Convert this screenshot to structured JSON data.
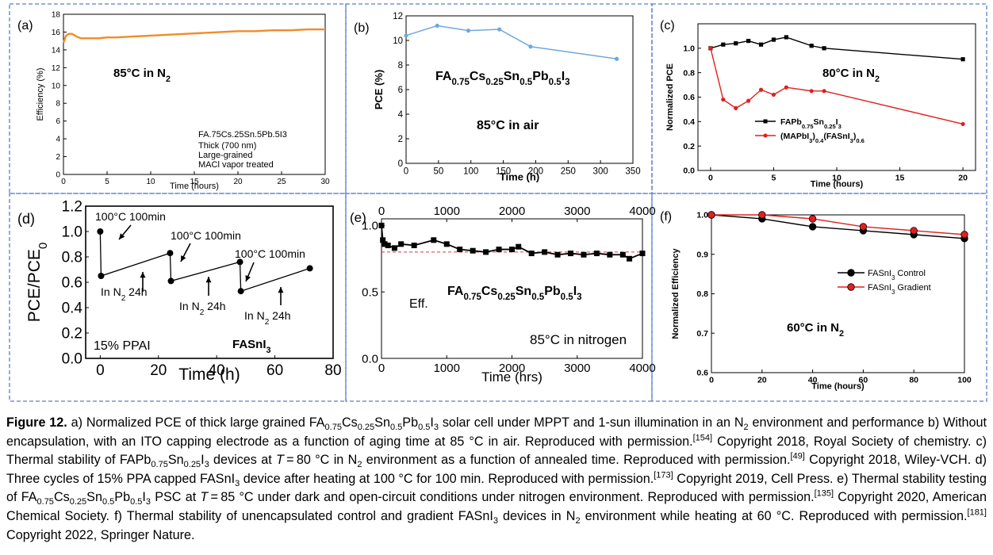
{
  "figure": {
    "panels": [
      {
        "id": "a",
        "panel_label": "(a)",
        "chart_data": {
          "type": "line",
          "xlabel": "Time (hours)",
          "ylabel": "Efficiency (%)",
          "xlim": [
            0,
            30
          ],
          "ylim": [
            0,
            18
          ],
          "xticks": [
            0,
            5,
            10,
            15,
            20,
            25,
            30
          ],
          "yticks": [
            0,
            2,
            4,
            6,
            8,
            10,
            12,
            14,
            16,
            18
          ],
          "series": [
            {
              "color": "#f08c28",
              "x": [
                0,
                0.3,
                0.6,
                1.0,
                1.5,
                2.0,
                3.0,
                4.0,
                5.0,
                6.0,
                8.0,
                10.0,
                12.0,
                14.0,
                16.0,
                18.0,
                20.0,
                22.0,
                24.0,
                26.0,
                28.0,
                30.0
              ],
              "y": [
                14.8,
                15.6,
                15.8,
                15.8,
                15.5,
                15.3,
                15.3,
                15.3,
                15.4,
                15.4,
                15.5,
                15.6,
                15.7,
                15.8,
                15.9,
                16.0,
                16.1,
                16.1,
                16.2,
                16.2,
                16.3,
                16.3
              ]
            }
          ],
          "annotations": {
            "condition": "85°C in N",
            "condition_sub": "2",
            "composition": "FA.75Cs.25Sn.5Pb.5I3",
            "notes": [
              "Thick (700 nm)",
              "Large-grained",
              "MACl vapor treated"
            ]
          }
        }
      },
      {
        "id": "b",
        "panel_label": "(b)",
        "chart_data": {
          "type": "line",
          "xlabel": "Time (h)",
          "ylabel": "PCE (%)",
          "xlim": [
            0,
            350
          ],
          "ylim": [
            0,
            12
          ],
          "xticks": [
            0,
            50,
            100,
            150,
            200,
            250,
            300,
            350
          ],
          "yticks": [
            0,
            2,
            4,
            6,
            8,
            10,
            12
          ],
          "series": [
            {
              "color": "#6fa8dc",
              "x": [
                0,
                48,
                96,
                144,
                192,
                325
              ],
              "y": [
                10.4,
                11.2,
                10.8,
                10.9,
                9.5,
                8.5
              ]
            }
          ],
          "annotations": {
            "composition": "FA0.75Cs0.25Sn0.5Pb0.5I3",
            "condition": "85°C in air"
          }
        }
      },
      {
        "id": "c",
        "panel_label": "(c)",
        "chart_data": {
          "type": "line",
          "xlabel": "Time (hours)",
          "ylabel": "Normalized PCE",
          "xlim": [
            -1,
            21
          ],
          "ylim": [
            0,
            1.2
          ],
          "xticks": [
            0,
            5,
            10,
            15,
            20
          ],
          "yticks": [
            0.0,
            0.2,
            0.4,
            0.6,
            0.8,
            1.0
          ],
          "legend": "middle-left",
          "series": [
            {
              "name": "FAPb0.75Sn0.25I3",
              "color": "#000000",
              "x": [
                0,
                1,
                2,
                3,
                4,
                5,
                6,
                8,
                9,
                20
              ],
              "y": [
                1.0,
                1.03,
                1.04,
                1.06,
                1.03,
                1.07,
                1.09,
                1.02,
                1.0,
                0.91
              ]
            },
            {
              "name": "(MAPbI3)0.4(FASnI3)0.6",
              "color": "#e02020",
              "x": [
                0,
                1,
                2,
                3,
                4,
                5,
                6,
                8,
                9,
                20
              ],
              "y": [
                1.0,
                0.58,
                0.51,
                0.57,
                0.66,
                0.62,
                0.68,
                0.65,
                0.65,
                0.38
              ]
            }
          ],
          "annotations": {
            "condition": "80°C in N",
            "condition_sub": "2"
          }
        }
      },
      {
        "id": "d",
        "panel_label": "(d)",
        "chart_data": {
          "type": "line",
          "xlabel": "Time (h)",
          "ylabel": "PCE/PCE",
          "ylabel_sub": "0",
          "xlim": [
            -5,
            80
          ],
          "ylim": [
            0,
            1.2
          ],
          "xticks": [
            0,
            20,
            40,
            60,
            80
          ],
          "yticks": [
            0.0,
            0.2,
            0.4,
            0.6,
            0.8,
            1.0,
            1.2
          ],
          "series": [
            {
              "color": "#000000",
              "segments": [
                {
                  "x": [
                    0,
                    0.3,
                    24
                  ],
                  "y": [
                    1.0,
                    0.65,
                    0.83
                  ]
                },
                {
                  "x": [
                    24,
                    24.3,
                    48
                  ],
                  "y": [
                    0.83,
                    0.61,
                    0.76
                  ]
                },
                {
                  "x": [
                    48,
                    48.3,
                    72
                  ],
                  "y": [
                    0.76,
                    0.53,
                    0.71
                  ]
                }
              ]
            }
          ],
          "annotations": {
            "heat_label": "100°C 100min",
            "rest_label": "In N",
            "rest_label_sub": "2",
            "rest_label_suffix": " 24h",
            "additive": "15% PPAI",
            "material": "FASnI3"
          }
        }
      },
      {
        "id": "e",
        "panel_label": "(e)",
        "chart_data": {
          "type": "line",
          "xlabel": "Time (hrs)",
          "xlim": [
            0,
            4000
          ],
          "ylim": [
            0,
            1.05
          ],
          "xticks": [
            0,
            1000,
            2000,
            3000,
            4000
          ],
          "yticks": [
            0.0,
            0.5,
            1.0
          ],
          "reference_line": 0.8,
          "series": [
            {
              "color": "#000000",
              "x": [
                0,
                20,
                50,
                100,
                200,
                300,
                500,
                800,
                1000,
                1200,
                1400,
                1600,
                1800,
                2000,
                2100,
                2300,
                2500,
                2700,
                2900,
                3100,
                3300,
                3500,
                3700,
                3800,
                4000
              ],
              "y": [
                1.0,
                0.89,
                0.86,
                0.85,
                0.83,
                0.86,
                0.85,
                0.89,
                0.86,
                0.82,
                0.81,
                0.8,
                0.82,
                0.82,
                0.84,
                0.79,
                0.8,
                0.78,
                0.79,
                0.78,
                0.79,
                0.78,
                0.78,
                0.75,
                0.79
              ]
            }
          ],
          "annotations": {
            "series_label": "Eff.",
            "composition": "FA0.75Cs0.25Sn0.5Pb0.5I3",
            "condition": "85°C in nitrogen"
          }
        }
      },
      {
        "id": "f",
        "panel_label": "(f)",
        "chart_data": {
          "type": "line",
          "xlabel": "Time (hours)",
          "ylabel": "Normalized Efficiency",
          "xlim": [
            0,
            100
          ],
          "ylim": [
            0.6,
            1.0
          ],
          "xticks": [
            0,
            20,
            40,
            60,
            80,
            100
          ],
          "yticks": [
            0.6,
            0.7,
            0.8,
            0.9,
            1.0
          ],
          "legend": "middle-right",
          "series": [
            {
              "name": "FASnI3 Control",
              "color": "#000000",
              "x": [
                0,
                20,
                40,
                60,
                80,
                100
              ],
              "y": [
                1.0,
                0.99,
                0.97,
                0.96,
                0.95,
                0.94
              ]
            },
            {
              "name": "FASnI3 Gradient",
              "color": "#e02020",
              "x": [
                0,
                20,
                40,
                60,
                80,
                100
              ],
              "y": [
                1.0,
                1.0,
                0.99,
                0.97,
                0.96,
                0.95
              ]
            }
          ],
          "annotations": {
            "condition": "60°C in N",
            "condition_sub": "2"
          }
        }
      }
    ]
  },
  "caption": {
    "label": "Figure 12.",
    "text_a": "a) Normalized PCE of thick large grained FA0.75Cs0.25Sn0.5Pb0.5I3 solar cell under MPPT and 1-sun illumination in an N2 environment and performance b) Without encapsulation, with an ITO capping electrode as a function of aging time at 85 °C in air. Reproduced with permission.[154] Copyright 2018, Royal Society of chemistry.",
    "text_c": "c) Thermal stability of FAPb0.75Sn0.25I3 devices at T = 80 °C in N2 environment as a function of annealed time. Reproduced with permission.[49] Copyright 2018, Wiley-VCH.",
    "text_d": "d) Three cycles of 15% PPA capped FASnI3 device after heating at 100 °C for 100 min. Reproduced with permission.[173] Copyright 2019, Cell Press.",
    "text_e": "e) Thermal stability testing of FA0.75Cs0.25Sn0.5Pb0.5I3 PSC at T = 85 °C under dark and open-circuit conditions under nitrogen environment. Reproduced with permission.[135] Copyright 2020, American Chemical Society.",
    "text_f": "f) Thermal stability of unencapsulated control and gradient FASnI3 devices in N2 environment while heating at 60 °C. Reproduced with permission.[181] Copyright 2022, Springer Nature."
  }
}
